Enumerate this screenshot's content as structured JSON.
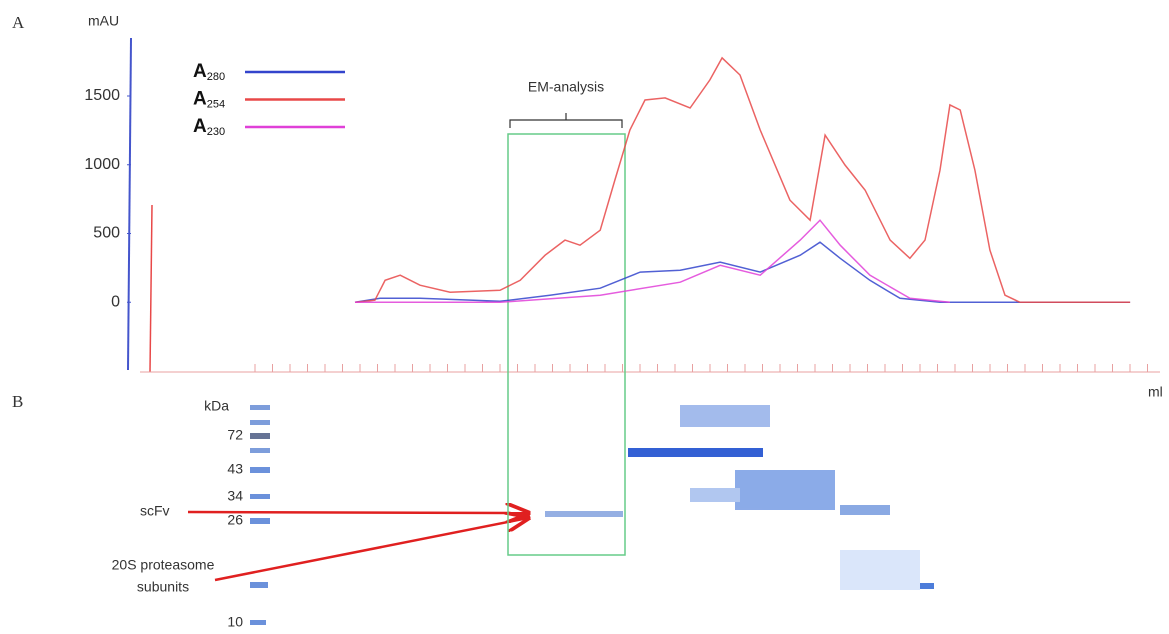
{
  "panels": {
    "a": "A",
    "b": "B"
  },
  "chart_data": {
    "type": "line",
    "ylabel": "mAU",
    "xlabel": "ml",
    "annotation": "EM-analysis",
    "xlim": [
      0,
      31
    ],
    "ylim": [
      -500,
      1900
    ],
    "yticks": [
      0,
      500,
      1000,
      1500
    ],
    "series": [
      {
        "name": "A280",
        "color": "#3344cc",
        "x": [
          6.72,
          7.5,
          8.75,
          11.25,
          12.81,
          14.38,
          15.63,
          16.88,
          18.13,
          19.38,
          20.63,
          21.25,
          21.88,
          22.81,
          23.75,
          25,
          30.94
        ],
        "values": [
          0,
          29,
          29,
          7,
          51,
          102,
          219,
          233,
          291,
          219,
          342,
          437,
          320,
          160,
          29,
          0,
          0
        ]
      },
      {
        "name": "A254",
        "color": "#e84848",
        "x": [
          6.72,
          7.34,
          7.66,
          8.13,
          8.75,
          9.69,
          11.25,
          11.88,
          12.66,
          13.28,
          13.75,
          14.38,
          14.84,
          15.31,
          15.78,
          16.41,
          17.19,
          17.81,
          18.19,
          18.75,
          19.38,
          20.31,
          20.94,
          21.41,
          22.03,
          22.66,
          23.44,
          24.06,
          24.53,
          25,
          25.31,
          25.63,
          26.09,
          26.56,
          27.03,
          27.5,
          30.94
        ],
        "values": [
          0,
          15,
          160,
          197,
          124,
          73,
          87,
          160,
          342,
          452,
          415,
          524,
          889,
          1253,
          1471,
          1486,
          1413,
          1617,
          1777,
          1653,
          1253,
          743,
          597,
          1216,
          998,
          816,
          452,
          320,
          452,
          961,
          1435,
          1398,
          961,
          379,
          51,
          0,
          0
        ]
      },
      {
        "name": "A230",
        "color": "#e040d8",
        "x": [
          6.72,
          11.25,
          14.38,
          16.88,
          18.13,
          19.38,
          20.63,
          21.25,
          21.88,
          22.81,
          24.06,
          25.31
        ],
        "values": [
          0,
          0,
          51,
          146,
          269,
          197,
          452,
          597,
          415,
          197,
          29,
          0
        ]
      }
    ]
  },
  "gel": {
    "unit": "kDa",
    "markers": [
      "72",
      "43",
      "34",
      "26",
      "10"
    ],
    "labels": [
      "scFv",
      "20S proteasome",
      "subunits"
    ]
  }
}
